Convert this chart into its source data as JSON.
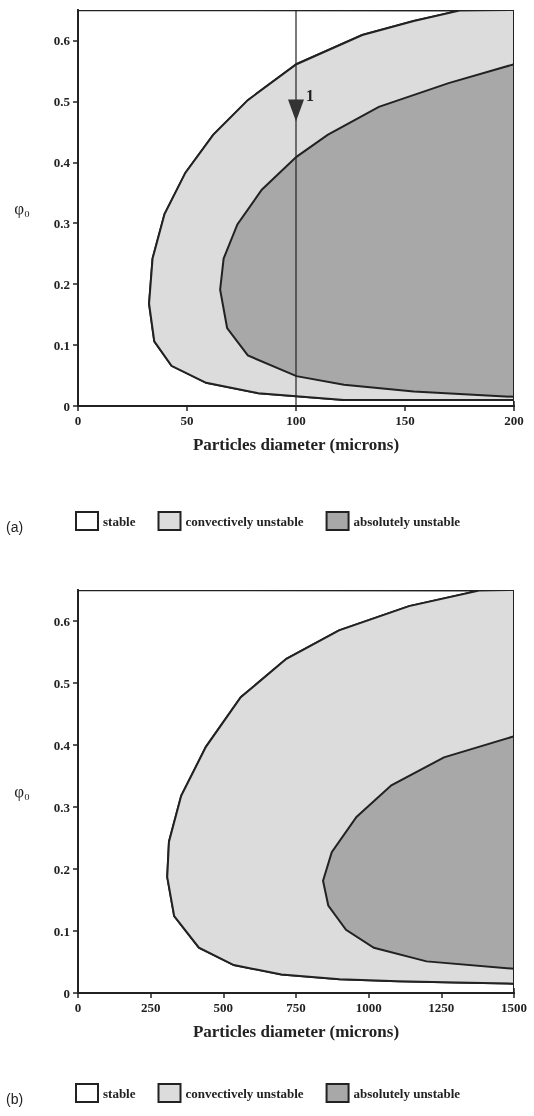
{
  "chart_data": [
    {
      "type": "area",
      "xlabel": "Particles diameter (microns)",
      "ylabel": "φ₀",
      "annotations": [
        "(a)",
        {
          "text": "1",
          "x": 100,
          "y": 0.5
        }
      ],
      "xlim": [
        0,
        200
      ],
      "xticks": [
        0,
        50,
        100,
        150,
        200
      ],
      "ylim": [
        0,
        0.65
      ],
      "yticks": [
        0,
        0.1,
        0.2,
        0.3,
        0.4,
        0.5,
        0.6
      ],
      "grid": false,
      "legend": "bottom",
      "ref_lines": [
        {
          "axis": "x",
          "value": 100
        }
      ],
      "series": [
        {
          "name": "stable",
          "color": "#ffffff",
          "x": [
            0,
            200,
            200,
            170,
            122,
            82.7,
            58.8,
            42.9,
            35,
            32.6,
            34.2,
            39.7,
            49.3,
            62,
            77.9,
            100.2,
            130.4,
            154,
            175,
            0
          ],
          "values": [
            0,
            0,
            0.01,
            0.01,
            0.01,
            0.021,
            0.038,
            0.066,
            0.106,
            0.168,
            0.242,
            0.315,
            0.383,
            0.445,
            0.502,
            0.561,
            0.609,
            0.632,
            0.649,
            0.65
          ]
        },
        {
          "name": "convectively unstable",
          "color": "#dcdcdc",
          "x": [
            200,
            170,
            122,
            82.7,
            58.8,
            42.9,
            35,
            32.6,
            34.2,
            39.7,
            49.3,
            62,
            77.9,
            100.2,
            130.4,
            154,
            175,
            200
          ],
          "values": [
            0.01,
            0.01,
            0.01,
            0.021,
            0.038,
            0.066,
            0.106,
            0.168,
            0.242,
            0.315,
            0.383,
            0.445,
            0.502,
            0.561,
            0.609,
            0.632,
            0.649,
            0.65
          ]
        },
        {
          "name": "absolutely unstable",
          "color": "#a8a8a8",
          "x": [
            200,
            154,
            122,
            100.2,
            77.9,
            68.4,
            65.2,
            66.8,
            73.1,
            84.3,
            100.2,
            114.5,
            138,
            170,
            200
          ],
          "values": [
            0.015,
            0.024,
            0.035,
            0.049,
            0.083,
            0.128,
            0.191,
            0.242,
            0.298,
            0.355,
            0.409,
            0.445,
            0.491,
            0.53,
            0.561
          ]
        }
      ]
    },
    {
      "type": "area",
      "xlabel": "Particles diameter (microns)",
      "ylabel": "φ₀",
      "annotations": [
        "(b)"
      ],
      "xlim": [
        0,
        1500
      ],
      "xticks": [
        0,
        250,
        500,
        750,
        1000,
        1250,
        1500
      ],
      "ylim": [
        0,
        0.65
      ],
      "yticks": [
        0,
        0.1,
        0.2,
        0.3,
        0.4,
        0.5,
        0.6
      ],
      "grid": false,
      "legend": "bottom",
      "series": [
        {
          "name": "stable",
          "color": "#ffffff",
          "x": [
            0,
            1500,
            1500,
            1300,
            1100,
            900,
            700,
            536,
            416,
            331,
            307,
            313,
            355,
            440,
            560,
            717,
            898,
            1139,
            1380,
            0
          ],
          "values": [
            0,
            0,
            0.015,
            0.017,
            0.019,
            0.022,
            0.03,
            0.045,
            0.073,
            0.124,
            0.187,
            0.244,
            0.318,
            0.397,
            0.477,
            0.539,
            0.585,
            0.624,
            0.649,
            0.65
          ]
        },
        {
          "name": "convectively unstable",
          "color": "#dcdcdc",
          "x": [
            1500,
            1300,
            1100,
            900,
            700,
            536,
            416,
            331,
            307,
            313,
            355,
            440,
            560,
            717,
            898,
            1139,
            1380,
            1500
          ],
          "values": [
            0.015,
            0.017,
            0.019,
            0.022,
            0.03,
            0.045,
            0.073,
            0.124,
            0.187,
            0.244,
            0.318,
            0.397,
            0.477,
            0.539,
            0.585,
            0.624,
            0.649,
            0.65
          ]
        },
        {
          "name": "absolutely unstable",
          "color": "#a8a8a8",
          "x": [
            1500,
            1199,
            1018,
            922,
            861,
            843,
            873,
            958,
            1078,
            1259,
            1500
          ],
          "values": [
            0.039,
            0.051,
            0.073,
            0.102,
            0.141,
            0.181,
            0.227,
            0.284,
            0.335,
            0.38,
            0.414
          ]
        }
      ]
    }
  ]
}
